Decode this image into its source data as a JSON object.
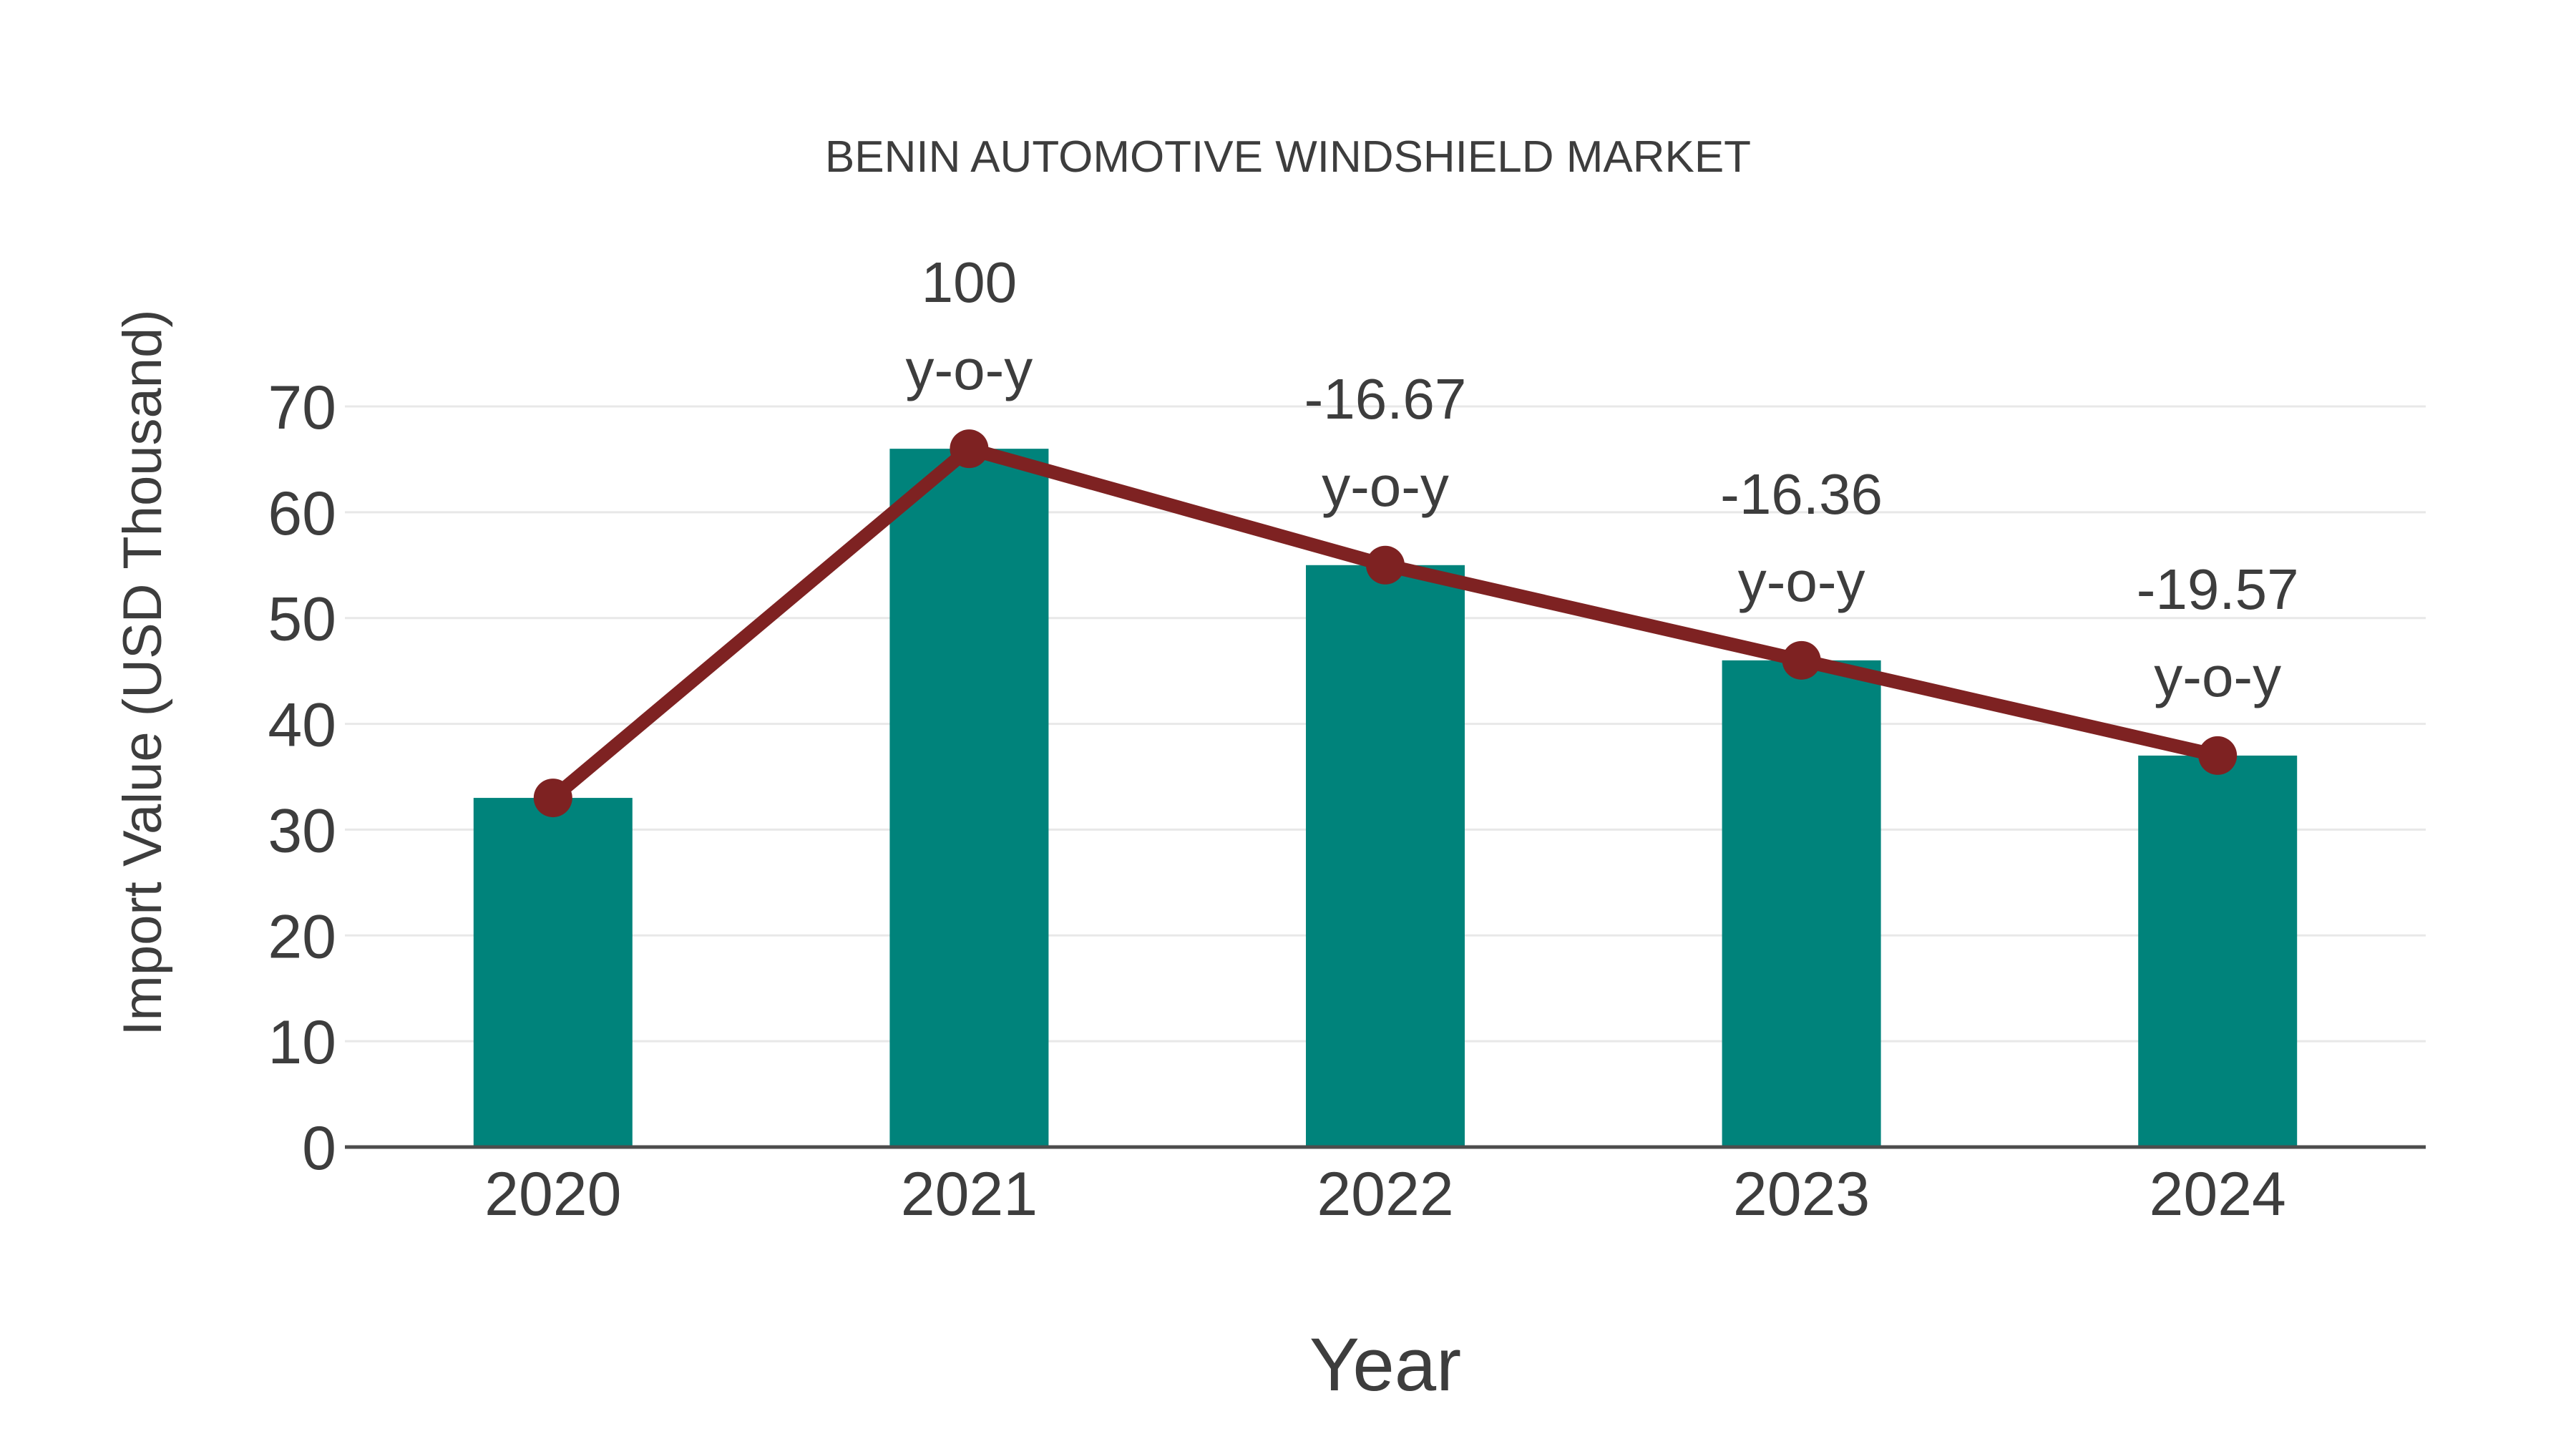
{
  "page": {
    "background": "#ffffff"
  },
  "chart_data": {
    "type": "bar",
    "title": "BENIN AUTOMOTIVE WINDSHIELD MARKET",
    "xlabel": "Year",
    "ylabel": "Import Value (USD Thousand)",
    "categories": [
      "2020",
      "2021",
      "2022",
      "2023",
      "2024"
    ],
    "series": [
      {
        "name": "import-value-bars",
        "type": "bar",
        "values": [
          33,
          66,
          55,
          46,
          37
        ],
        "color": "#00837B"
      },
      {
        "name": "yoy-trend-line",
        "type": "line",
        "values": [
          33,
          66,
          55,
          46,
          37
        ],
        "color": "#7E2222"
      }
    ],
    "annotations": [
      {
        "category": "2021",
        "line1": "100",
        "line2": "y-o-y"
      },
      {
        "category": "2022",
        "line1": "-16.67",
        "line2": "y-o-y"
      },
      {
        "category": "2023",
        "line1": "-16.36",
        "line2": "y-o-y"
      },
      {
        "category": "2024",
        "line1": "-19.57",
        "line2": "y-o-y"
      }
    ],
    "ylim": [
      0,
      70
    ],
    "yticks": [
      0,
      10,
      20,
      30,
      40,
      50,
      60,
      70
    ],
    "grid": true,
    "legend": false,
    "colors": {
      "bar": "#00837B",
      "line": "#7E2222",
      "marker": "#7E2222",
      "text": "#3D3D3D",
      "gridline": "#E8E8E8",
      "axis_line": "#4D4D4D"
    }
  }
}
